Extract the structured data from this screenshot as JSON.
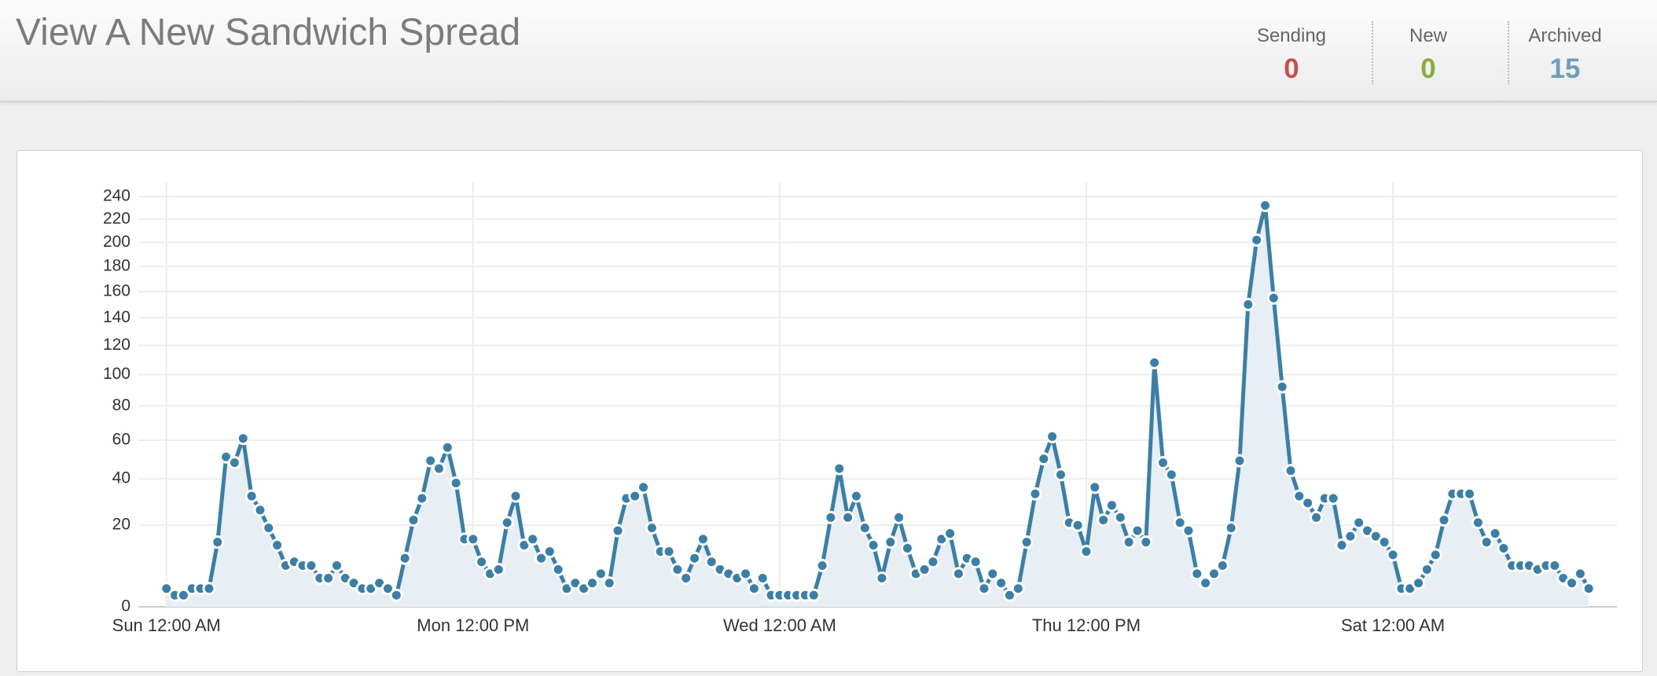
{
  "header": {
    "title": "View A New Sandwich Spread",
    "stats": [
      {
        "label": "Sending",
        "value": 0,
        "color": "#c4504c"
      },
      {
        "label": "New",
        "value": 0,
        "color": "#8aab3f"
      },
      {
        "label": "Archived",
        "value": 15,
        "color": "#6f9db7"
      }
    ]
  },
  "chart_data": {
    "type": "line",
    "area": true,
    "markers": true,
    "color": "#3a7fa8",
    "area_color": "#e7eef4",
    "grid": true,
    "yscale": "pow",
    "yexponent": 0.65,
    "x": [
      0,
      1,
      2,
      3,
      4,
      5,
      6,
      7,
      8,
      9,
      10,
      11,
      12,
      13,
      14,
      15,
      16,
      17,
      18,
      19,
      20,
      21,
      22,
      23,
      24,
      25,
      26,
      27,
      28,
      29,
      30,
      31,
      32,
      33,
      34,
      35,
      36,
      37,
      38,
      39,
      40,
      41,
      42,
      43,
      44,
      45,
      46,
      47,
      48,
      49,
      50,
      51,
      52,
      53,
      54,
      55,
      56,
      57,
      58,
      59,
      60,
      61,
      62,
      63,
      64,
      65,
      66,
      67,
      68,
      69,
      70,
      71,
      72,
      73,
      74,
      75,
      76,
      77,
      78,
      79,
      80,
      81,
      82,
      83,
      84,
      85,
      86,
      87,
      88,
      89,
      90,
      91,
      92,
      93,
      94,
      95,
      96,
      97,
      98,
      99,
      100,
      101,
      102,
      103,
      104,
      105,
      106,
      107,
      108,
      109,
      110,
      111,
      112,
      113,
      114,
      115,
      116,
      117,
      118,
      119,
      120,
      121,
      122,
      123,
      124,
      125,
      126,
      127,
      128,
      129,
      130,
      131,
      132,
      133,
      134,
      135,
      136,
      137,
      138,
      139,
      140,
      141,
      142,
      143,
      144,
      145,
      146,
      147,
      148,
      149,
      150,
      151,
      152,
      153,
      154,
      155,
      156,
      157,
      158,
      159,
      160,
      161,
      162,
      163,
      164,
      165,
      166,
      167
    ],
    "values": [
      2,
      1,
      1,
      2,
      2,
      2,
      14,
      51,
      48,
      61,
      32,
      26,
      19,
      13,
      7,
      8,
      7,
      7,
      4,
      4,
      7,
      4,
      3,
      2,
      2,
      3,
      2,
      1,
      9,
      22,
      31,
      49,
      45,
      56,
      38,
      15,
      15,
      8,
      5,
      6,
      21,
      32,
      13,
      15,
      9,
      11,
      6,
      2,
      3,
      2,
      3,
      5,
      3,
      18,
      31,
      32,
      36,
      19,
      11,
      11,
      6,
      4,
      9,
      15,
      8,
      6,
      5,
      4,
      5,
      2,
      4,
      1,
      1,
      1,
      1,
      1,
      1,
      7,
      23,
      45,
      23,
      32,
      19,
      13,
      4,
      14,
      23,
      12,
      5,
      6,
      8,
      15,
      17,
      5,
      9,
      8,
      2,
      5,
      3,
      1,
      2,
      14,
      33,
      50,
      62,
      42,
      21,
      20,
      11,
      36,
      22,
      28,
      23,
      14,
      18,
      14,
      108,
      48,
      42,
      21,
      18,
      5,
      3,
      5,
      7,
      19,
      49,
      150,
      202,
      232,
      155,
      92,
      44,
      32,
      29,
      23,
      31,
      31,
      13,
      16,
      21,
      18,
      16,
      14,
      10,
      2,
      2,
      3,
      6,
      10,
      22,
      33,
      33,
      33,
      21,
      14,
      17,
      12,
      7,
      7,
      7,
      6,
      7,
      7,
      4,
      3,
      5,
      2
    ],
    "xlim": [
      -3.3,
      170.3
    ],
    "xticks": [
      {
        "value": 0,
        "label": "Sun 12:00 AM"
      },
      {
        "value": 36,
        "label": "Mon 12:00 PM"
      },
      {
        "value": 72,
        "label": "Wed 12:00 AM"
      },
      {
        "value": 108,
        "label": "Thu 12:00 PM"
      },
      {
        "value": 144,
        "label": "Sat 12:00 AM"
      }
    ],
    "ylim": [
      0,
      240
    ],
    "yticks": [
      0,
      20,
      40,
      60,
      80,
      100,
      120,
      140,
      160,
      180,
      200,
      220,
      240
    ]
  }
}
